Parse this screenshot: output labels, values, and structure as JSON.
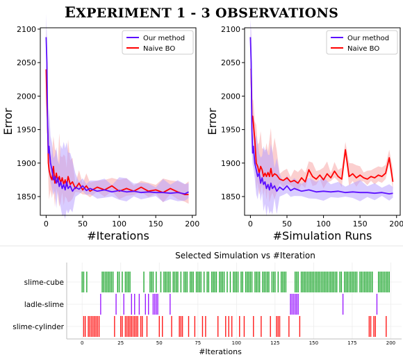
{
  "page_title": "Experiment 1 - 3 Observations",
  "colors": {
    "ours": "#5b0fff",
    "naive": "#ff0000",
    "naive_band": "#f7a8a8",
    "ours_band": "#b9a3ff",
    "cube": "#22a832",
    "ladle": "#9b1cff",
    "cyl": "#ff1a1a"
  },
  "chart_data": [
    {
      "type": "line",
      "xlabel": "#Iterations",
      "ylabel": "Error",
      "xlim": [
        -8,
        205
      ],
      "ylim": [
        1822,
        2102
      ],
      "xticks": [
        0,
        50,
        100,
        150,
        200
      ],
      "yticks": [
        1850,
        1900,
        1950,
        2000,
        2050,
        2100
      ],
      "legend": "top-right",
      "grid": false,
      "series": [
        {
          "name": "Our method",
          "x": [
            0,
            1,
            2,
            3,
            4,
            6,
            8,
            10,
            12,
            14,
            16,
            18,
            20,
            22,
            24,
            26,
            28,
            30,
            33,
            36,
            40,
            45,
            50,
            55,
            60,
            70,
            80,
            90,
            100,
            110,
            120,
            130,
            140,
            150,
            160,
            170,
            180,
            190,
            195
          ],
          "y": [
            2088,
            2050,
            1960,
            1915,
            1925,
            1900,
            1890,
            1875,
            1880,
            1870,
            1878,
            1865,
            1872,
            1862,
            1868,
            1860,
            1872,
            1862,
            1866,
            1858,
            1864,
            1861,
            1866,
            1859,
            1862,
            1858,
            1860,
            1857,
            1859,
            1857,
            1858,
            1856,
            1857,
            1856,
            1856,
            1855,
            1856,
            1854,
            1857
          ]
        },
        {
          "name": "Naive BO",
          "x": [
            0,
            1,
            2,
            3,
            4,
            6,
            8,
            10,
            12,
            14,
            16,
            18,
            20,
            22,
            24,
            26,
            28,
            30,
            33,
            36,
            40,
            45,
            50,
            55,
            60,
            70,
            80,
            90,
            100,
            110,
            120,
            130,
            140,
            150,
            160,
            170,
            180,
            190,
            195
          ],
          "y": [
            2040,
            1990,
            1960,
            1900,
            1890,
            1880,
            1875,
            1895,
            1870,
            1885,
            1872,
            1880,
            1870,
            1878,
            1868,
            1875,
            1866,
            1880,
            1868,
            1872,
            1862,
            1870,
            1860,
            1866,
            1858,
            1864,
            1860,
            1866,
            1858,
            1862,
            1858,
            1864,
            1858,
            1860,
            1856,
            1862,
            1857,
            1853,
            1853
          ]
        }
      ]
    },
    {
      "type": "line",
      "xlabel": "#Simulation Runs",
      "ylabel": "Error",
      "xlim": [
        -8,
        205
      ],
      "ylim": [
        1822,
        2102
      ],
      "xticks": [
        0,
        50,
        100,
        150,
        200
      ],
      "yticks": [
        1850,
        1900,
        1950,
        2000,
        2050,
        2100
      ],
      "legend": "top-right",
      "grid": false,
      "series": [
        {
          "name": "Our method",
          "x": [
            0,
            1,
            2,
            3,
            4,
            6,
            8,
            10,
            12,
            14,
            16,
            18,
            20,
            22,
            24,
            26,
            28,
            30,
            33,
            36,
            40,
            45,
            50,
            55,
            60,
            70,
            80,
            90,
            100,
            110,
            120,
            130,
            140,
            150,
            160,
            170,
            180,
            190,
            195
          ],
          "y": [
            2088,
            2050,
            1950,
            1915,
            1925,
            1900,
            1890,
            1880,
            1885,
            1870,
            1878,
            1868,
            1872,
            1862,
            1868,
            1860,
            1870,
            1862,
            1866,
            1858,
            1864,
            1860,
            1866,
            1859,
            1862,
            1858,
            1860,
            1857,
            1858,
            1857,
            1858,
            1856,
            1857,
            1856,
            1856,
            1855,
            1856,
            1854,
            1855
          ]
        },
        {
          "name": "Naive BO",
          "x": [
            0,
            1,
            2,
            3,
            4,
            6,
            8,
            10,
            12,
            14,
            16,
            18,
            20,
            22,
            24,
            26,
            28,
            30,
            33,
            36,
            40,
            45,
            50,
            55,
            60,
            65,
            70,
            75,
            80,
            85,
            90,
            95,
            100,
            105,
            110,
            115,
            120,
            125,
            130,
            135,
            140,
            145,
            150,
            155,
            160,
            165,
            170,
            175,
            180,
            185,
            190,
            195
          ],
          "y": [
            2040,
            2040,
            1970,
            1970,
            1960,
            1935,
            1900,
            1895,
            1885,
            1895,
            1890,
            1880,
            1885,
            1880,
            1886,
            1880,
            1892,
            1880,
            1884,
            1882,
            1876,
            1874,
            1878,
            1872,
            1874,
            1870,
            1878,
            1872,
            1890,
            1880,
            1876,
            1882,
            1875,
            1884,
            1878,
            1888,
            1880,
            1876,
            1920,
            1880,
            1884,
            1878,
            1882,
            1878,
            1876,
            1880,
            1878,
            1882,
            1880,
            1885,
            1908,
            1872
          ]
        }
      ]
    },
    {
      "type": "scatter",
      "title": "Selected Simulation vs #Iteration",
      "xlabel": "#Iterations",
      "categories": [
        "slime-cylinder",
        "ladle-slime",
        "slime-cube"
      ],
      "xticks": [
        0,
        25,
        50,
        75,
        100,
        125,
        150,
        175,
        200
      ],
      "xlim": [
        -10,
        207
      ],
      "grid": true,
      "series": [
        {
          "name": "slime-cube",
          "x": [
            0,
            1,
            3,
            13,
            14,
            15,
            16,
            17,
            18,
            19,
            20,
            23,
            24,
            26,
            28,
            29,
            30,
            31,
            40,
            44,
            45,
            46,
            48,
            51,
            53,
            54,
            55,
            56,
            57,
            59,
            60,
            61,
            62,
            64,
            66,
            67,
            68,
            70,
            71,
            72,
            74,
            75,
            76,
            77,
            79,
            81,
            82,
            84,
            85,
            86,
            87,
            89,
            90,
            91,
            92,
            94,
            96,
            98,
            99,
            100,
            101,
            103,
            104,
            106,
            107,
            108,
            109,
            110,
            112,
            113,
            114,
            115,
            117,
            118,
            119,
            120,
            121,
            123,
            124,
            125,
            127,
            129,
            130,
            131,
            132,
            138,
            139,
            140,
            142,
            143,
            144,
            145,
            146,
            147,
            148,
            149,
            150,
            151,
            152,
            153,
            154,
            155,
            156,
            157,
            158,
            159,
            160,
            161,
            162,
            163,
            164,
            165,
            167,
            168,
            170,
            171,
            172,
            173,
            174,
            175,
            176,
            177,
            178,
            180,
            181,
            182,
            183,
            184,
            185,
            186,
            187,
            188,
            192,
            193,
            194,
            195,
            196,
            197,
            198,
            199
          ]
        },
        {
          "name": "ladle-slime",
          "x": [
            12,
            22,
            27,
            32,
            34,
            37,
            41,
            43,
            46,
            47,
            48,
            49,
            57,
            135,
            136,
            137,
            138,
            139,
            140,
            169,
            191
          ]
        },
        {
          "name": "slime-cylinder",
          "x": [
            1,
            2,
            4,
            5,
            6,
            7,
            8,
            9,
            10,
            11,
            21,
            25,
            26,
            28,
            29,
            30,
            31,
            32,
            33,
            34,
            35,
            36,
            38,
            39,
            42,
            50,
            52,
            58,
            63,
            64,
            65,
            69,
            73,
            78,
            80,
            88,
            93,
            95,
            97,
            102,
            105,
            111,
            116,
            122,
            126,
            127,
            128,
            134,
            141,
            186,
            187,
            189,
            190,
            197
          ]
        }
      ]
    }
  ]
}
